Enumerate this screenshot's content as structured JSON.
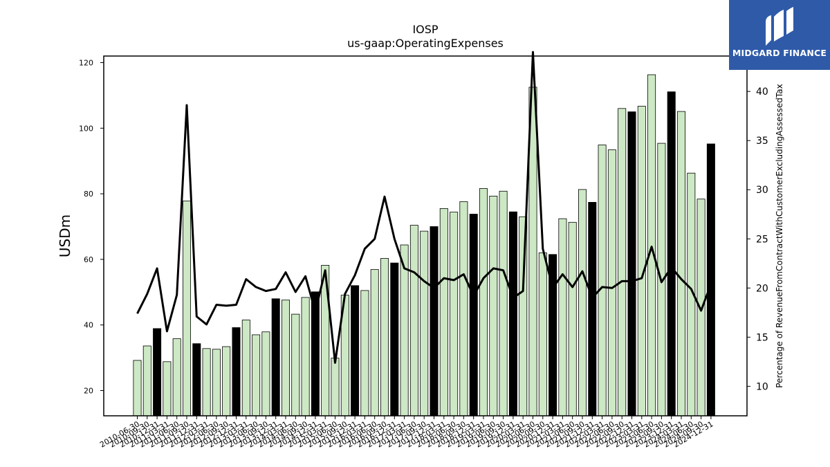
{
  "chart_data": {
    "type": "bar",
    "title": "IOSP",
    "subtitle": "us-gaap:OperatingExpenses",
    "ylabel": "USDm",
    "y2label": "Percentage of RevenueFromContractWithCustomerExcludingAssessedTax",
    "ylim": [
      12.3,
      122
    ],
    "y2lim": [
      7,
      43.6
    ],
    "yticks": [
      20,
      40,
      60,
      80,
      100,
      120
    ],
    "y2ticks": [
      10,
      15,
      20,
      25,
      30,
      35,
      40
    ],
    "grid": false,
    "categories": [
      "2010-06-30",
      "2010-09-30",
      "2010-12-31",
      "2011-03-31",
      "2011-06-30",
      "2011-09-30",
      "2011-12-31",
      "2012-03-31",
      "2012-06-30",
      "2012-09-30",
      "2012-12-31",
      "2013-03-31",
      "2013-06-30",
      "2013-09-30",
      "2013-12-31",
      "2014-03-31",
      "2014-06-30",
      "2014-09-30",
      "2014-12-31",
      "2015-03-31",
      "2015-06-30",
      "2015-09-30",
      "2015-12-31",
      "2016-03-31",
      "2016-06-30",
      "2016-09-30",
      "2016-12-31",
      "2017-03-31",
      "2017-06-30",
      "2017-09-30",
      "2017-12-31",
      "2018-03-31",
      "2018-06-30",
      "2018-09-30",
      "2018-12-31",
      "2019-03-31",
      "2019-06-30",
      "2019-09-30",
      "2019-12-31",
      "2020-03-31",
      "2020-06-30",
      "2020-09-30",
      "2020-12-31",
      "2021-03-31",
      "2021-06-30",
      "2021-09-30",
      "2021-12-31",
      "2022-03-31",
      "2022-06-30",
      "2022-09-30",
      "2022-12-31",
      "2023-03-31",
      "2023-06-30",
      "2023-09-30",
      "2023-12-31",
      "2024-03-31",
      "2024-06-30",
      "2024-09-30",
      "2024-12-31"
    ],
    "series": [
      {
        "kind": "bar",
        "axis": "left",
        "values": [
          29.2,
          33.6,
          38.9,
          28.8,
          35.8,
          77.8,
          34.3,
          32.8,
          32.6,
          33.4,
          39.2,
          41.5,
          37.0,
          37.9,
          48.0,
          47.6,
          43.3,
          48.4,
          50.1,
          58.2,
          29.9,
          49.1,
          52.0,
          50.5,
          56.9,
          60.3,
          58.9,
          64.4,
          70.4,
          68.6,
          70.0,
          75.5,
          74.4,
          77.6,
          73.8,
          81.6,
          79.3,
          80.8,
          74.5,
          73.0,
          112.5,
          62.0,
          61.5,
          72.4,
          71.3,
          81.3,
          77.4,
          94.9,
          93.4,
          106.0,
          105.0,
          106.7,
          116.3,
          95.4,
          111.1,
          105.1,
          86.3,
          78.4,
          95.2
        ],
        "highlight": [
          false,
          false,
          true,
          false,
          false,
          false,
          true,
          false,
          false,
          false,
          true,
          false,
          false,
          false,
          true,
          false,
          false,
          false,
          true,
          false,
          false,
          false,
          true,
          false,
          false,
          false,
          true,
          false,
          false,
          false,
          true,
          false,
          false,
          false,
          true,
          false,
          false,
          false,
          true,
          false,
          false,
          false,
          true,
          false,
          false,
          false,
          true,
          false,
          false,
          false,
          true,
          false,
          false,
          false,
          true,
          false,
          false,
          false,
          true
        ],
        "color": "#cce8c4",
        "highlight_color": "#000000"
      },
      {
        "kind": "line",
        "axis": "right",
        "values": [
          17.4,
          19.4,
          22.0,
          15.6,
          19.3,
          38.6,
          17.1,
          16.3,
          18.3,
          18.2,
          18.3,
          20.9,
          20.1,
          19.7,
          19.9,
          21.6,
          19.6,
          21.2,
          17.6,
          21.8,
          12.4,
          19.4,
          21.3,
          24.0,
          25.0,
          29.3,
          25.0,
          22.0,
          21.6,
          20.7,
          20.0,
          21.0,
          20.8,
          21.4,
          19.2,
          21.0,
          22.0,
          21.8,
          19.0,
          19.7,
          44.0,
          24.0,
          20.0,
          21.4,
          20.1,
          21.7,
          19.0,
          20.1,
          20.0,
          20.7,
          20.7,
          21.0,
          24.2,
          20.6,
          22.1,
          20.9,
          19.9,
          17.7,
          20.4
        ],
        "color": "#000000"
      }
    ]
  },
  "logo": {
    "text": "MIDGARD FINANCE",
    "icon": "midgard-logo-icon",
    "background": "#2f5aa8"
  }
}
